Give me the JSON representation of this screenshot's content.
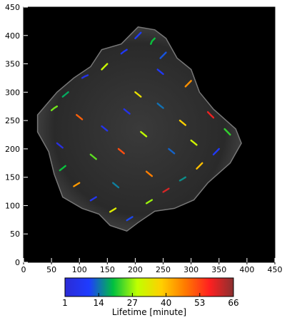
{
  "chart_data": {
    "type": "scatter",
    "title": "",
    "xlabel": "",
    "ylabel": "",
    "xlim": [
      0,
      450
    ],
    "ylim": [
      0,
      450
    ],
    "x_ticks": [
      "0",
      "50",
      "100",
      "150",
      "200",
      "250",
      "300",
      "350",
      "400",
      "450"
    ],
    "y_ticks": [
      "0",
      "50",
      "100",
      "150",
      "200",
      "250",
      "300",
      "350",
      "400",
      "450"
    ],
    "background": "black microscopy image of a cell, grayscale",
    "grid": false,
    "colorbar": {
      "label": "Lifetime [minute]",
      "ticks": [
        "1",
        "14",
        "27",
        "40",
        "53",
        "66"
      ],
      "range": [
        1,
        66
      ],
      "colors": [
        "#2b2bd6",
        "#1e3cff",
        "#00c040",
        "#c0ff00",
        "#ffd000",
        "#ff7a00",
        "#ff2020",
        "#8a3030"
      ]
    },
    "cell_outline": [
      [
        25,
        260
      ],
      [
        60,
        300
      ],
      [
        90,
        325
      ],
      [
        120,
        345
      ],
      [
        140,
        375
      ],
      [
        175,
        385
      ],
      [
        205,
        415
      ],
      [
        235,
        410
      ],
      [
        255,
        395
      ],
      [
        275,
        360
      ],
      [
        300,
        340
      ],
      [
        315,
        300
      ],
      [
        340,
        270
      ],
      [
        380,
        235
      ],
      [
        390,
        210
      ],
      [
        370,
        175
      ],
      [
        330,
        140
      ],
      [
        305,
        110
      ],
      [
        270,
        95
      ],
      [
        235,
        90
      ],
      [
        205,
        70
      ],
      [
        185,
        55
      ],
      [
        155,
        65
      ],
      [
        135,
        85
      ],
      [
        105,
        95
      ],
      [
        70,
        115
      ],
      [
        55,
        155
      ],
      [
        45,
        195
      ],
      [
        25,
        230
      ]
    ],
    "tracks": [
      {
        "x": [
          210,
          205,
          200
        ],
        "y": [
          405,
          400,
          395
        ],
        "lifetime": 10
      },
      {
        "x": [
          235,
          230,
          228
        ],
        "y": [
          395,
          390,
          385
        ],
        "lifetime": 20
      },
      {
        "x": [
          185,
          180,
          175
        ],
        "y": [
          375,
          372,
          368
        ],
        "lifetime": 8
      },
      {
        "x": [
          150,
          145,
          140
        ],
        "y": [
          350,
          345,
          340
        ],
        "lifetime": 30
      },
      {
        "x": [
          255,
          250,
          245
        ],
        "y": [
          370,
          365,
          360
        ],
        "lifetime": 12
      },
      {
        "x": [
          115,
          110,
          105
        ],
        "y": [
          330,
          328,
          325
        ],
        "lifetime": 5
      },
      {
        "x": [
          300,
          295,
          290
        ],
        "y": [
          320,
          315,
          310
        ],
        "lifetime": 45
      },
      {
        "x": [
          80,
          75,
          70
        ],
        "y": [
          300,
          296,
          292
        ],
        "lifetime": 18
      },
      {
        "x": [
          60,
          55,
          50
        ],
        "y": [
          275,
          272,
          268
        ],
        "lifetime": 25
      },
      {
        "x": [
          95,
          100,
          105
        ],
        "y": [
          260,
          256,
          252
        ],
        "lifetime": 50
      },
      {
        "x": [
          140,
          145,
          150
        ],
        "y": [
          240,
          236,
          232
        ],
        "lifetime": 6
      },
      {
        "x": [
          200,
          205,
          210
        ],
        "y": [
          300,
          296,
          292
        ],
        "lifetime": 35
      },
      {
        "x": [
          240,
          245,
          250
        ],
        "y": [
          280,
          276,
          272
        ],
        "lifetime": 14
      },
      {
        "x": [
          330,
          335,
          340
        ],
        "y": [
          265,
          260,
          255
        ],
        "lifetime": 58
      },
      {
        "x": [
          360,
          365,
          370
        ],
        "y": [
          235,
          230,
          225
        ],
        "lifetime": 22
      },
      {
        "x": [
          350,
          345,
          340
        ],
        "y": [
          200,
          195,
          190
        ],
        "lifetime": 9
      },
      {
        "x": [
          320,
          315,
          310
        ],
        "y": [
          175,
          170,
          165
        ],
        "lifetime": 40
      },
      {
        "x": [
          290,
          285,
          280
        ],
        "y": [
          150,
          147,
          144
        ],
        "lifetime": 16
      },
      {
        "x": [
          260,
          255,
          250
        ],
        "y": [
          130,
          127,
          124
        ],
        "lifetime": 60
      },
      {
        "x": [
          230,
          225,
          220
        ],
        "y": [
          110,
          107,
          104
        ],
        "lifetime": 27
      },
      {
        "x": [
          195,
          190,
          185
        ],
        "y": [
          80,
          77,
          74
        ],
        "lifetime": 11
      },
      {
        "x": [
          165,
          160,
          155
        ],
        "y": [
          95,
          92,
          89
        ],
        "lifetime": 33
      },
      {
        "x": [
          130,
          125,
          120
        ],
        "y": [
          115,
          112,
          109
        ],
        "lifetime": 7
      },
      {
        "x": [
          100,
          95,
          90
        ],
        "y": [
          140,
          137,
          134
        ],
        "lifetime": 44
      },
      {
        "x": [
          75,
          70,
          65
        ],
        "y": [
          170,
          166,
          162
        ],
        "lifetime": 20
      },
      {
        "x": [
          60,
          65,
          70
        ],
        "y": [
          210,
          206,
          202
        ],
        "lifetime": 3
      },
      {
        "x": [
          170,
          175,
          180
        ],
        "y": [
          200,
          196,
          192
        ],
        "lifetime": 52
      },
      {
        "x": [
          210,
          215,
          220
        ],
        "y": [
          230,
          226,
          222
        ],
        "lifetime": 29
      },
      {
        "x": [
          260,
          265,
          270
        ],
        "y": [
          200,
          196,
          192
        ],
        "lifetime": 13
      },
      {
        "x": [
          280,
          285,
          290
        ],
        "y": [
          250,
          246,
          242
        ],
        "lifetime": 38
      },
      {
        "x": [
          180,
          185,
          190
        ],
        "y": [
          270,
          266,
          262
        ],
        "lifetime": 5
      },
      {
        "x": [
          120,
          125,
          130
        ],
        "y": [
          190,
          186,
          182
        ],
        "lifetime": 24
      },
      {
        "x": [
          220,
          225,
          230
        ],
        "y": [
          160,
          156,
          152
        ],
        "lifetime": 47
      },
      {
        "x": [
          160,
          165,
          170
        ],
        "y": [
          140,
          136,
          132
        ],
        "lifetime": 15
      },
      {
        "x": [
          300,
          305,
          310
        ],
        "y": [
          215,
          211,
          207
        ],
        "lifetime": 31
      },
      {
        "x": [
          240,
          245,
          250
        ],
        "y": [
          340,
          336,
          332
        ],
        "lifetime": 8
      }
    ]
  }
}
